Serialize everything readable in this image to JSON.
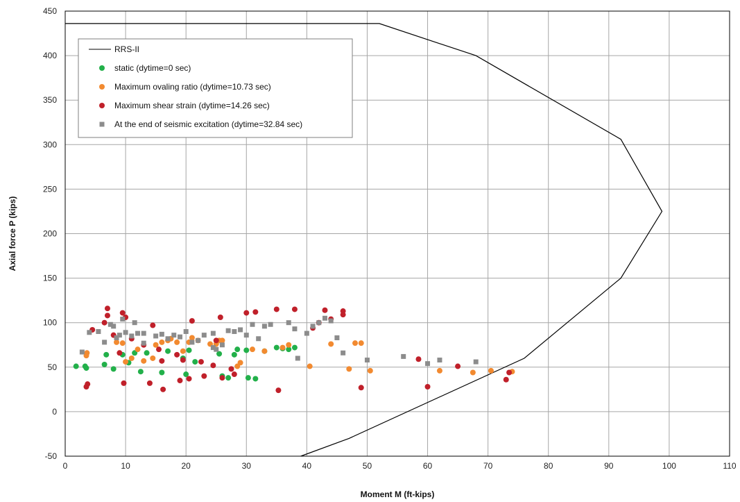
{
  "chart_data": {
    "type": "scatter",
    "xlabel": "Moment M (ft-kips)",
    "ylabel": "Axial force P (kips)",
    "xlim": [
      0,
      110
    ],
    "ylim": [
      -50,
      450
    ],
    "xticks": [
      0,
      10,
      20,
      30,
      40,
      50,
      60,
      70,
      80,
      90,
      100,
      110
    ],
    "yticks": [
      -50,
      0,
      50,
      100,
      150,
      200,
      250,
      300,
      350,
      400,
      450
    ],
    "grid": true,
    "legend_position": "top-left",
    "interaction_curve": {
      "name": "RRS-II",
      "color": "#000000",
      "points": [
        [
          0,
          436
        ],
        [
          52,
          436
        ],
        [
          68,
          400
        ],
        [
          92,
          306
        ],
        [
          98.8,
          225
        ],
        [
          92,
          150
        ],
        [
          76,
          60
        ],
        [
          47,
          -30
        ],
        [
          39,
          -50
        ]
      ]
    },
    "series": [
      {
        "name": "static (dytime=0 sec)",
        "marker": "circle",
        "color": "#22b04a",
        "points": [
          [
            1.8,
            51
          ],
          [
            3.3,
            51
          ],
          [
            3.5,
            49
          ],
          [
            6.5,
            53
          ],
          [
            6.8,
            64
          ],
          [
            8,
            48
          ],
          [
            9.5,
            64
          ],
          [
            10.5,
            55
          ],
          [
            11.5,
            66
          ],
          [
            12.5,
            45
          ],
          [
            13.5,
            66
          ],
          [
            16,
            44
          ],
          [
            17,
            68
          ],
          [
            19.5,
            60
          ],
          [
            20,
            42
          ],
          [
            20.5,
            69
          ],
          [
            21.5,
            56
          ],
          [
            25.5,
            65
          ],
          [
            26,
            40
          ],
          [
            27,
            38
          ],
          [
            28,
            64
          ],
          [
            28.5,
            70
          ],
          [
            30,
            69
          ],
          [
            30.3,
            38
          ],
          [
            31.5,
            37
          ],
          [
            33,
            68
          ],
          [
            35,
            72
          ],
          [
            36,
            71
          ],
          [
            37,
            70
          ],
          [
            38,
            72
          ]
        ]
      },
      {
        "name": "Maximum ovaling ratio (dytime=10.73 sec)",
        "marker": "circle",
        "color": "#f28a30",
        "points": [
          [
            3.5,
            63
          ],
          [
            3.6,
            66
          ],
          [
            8.5,
            78
          ],
          [
            9.5,
            77
          ],
          [
            10,
            56
          ],
          [
            11,
            60
          ],
          [
            12,
            70
          ],
          [
            13,
            57
          ],
          [
            14.5,
            60
          ],
          [
            15,
            75
          ],
          [
            16,
            78
          ],
          [
            17,
            80
          ],
          [
            17.5,
            82
          ],
          [
            18.5,
            78
          ],
          [
            19.5,
            68
          ],
          [
            20.5,
            78
          ],
          [
            21,
            83
          ],
          [
            22,
            80
          ],
          [
            24,
            76
          ],
          [
            25,
            76
          ],
          [
            25.5,
            80
          ],
          [
            26,
            80
          ],
          [
            28.5,
            51
          ],
          [
            29,
            55
          ],
          [
            31,
            70
          ],
          [
            33,
            68
          ],
          [
            36,
            72
          ],
          [
            37,
            75
          ],
          [
            40.5,
            51
          ],
          [
            44,
            76
          ],
          [
            47,
            48
          ],
          [
            48,
            77
          ],
          [
            49,
            77
          ],
          [
            50.5,
            46
          ],
          [
            62,
            46
          ],
          [
            67.5,
            44
          ],
          [
            70.5,
            46
          ],
          [
            74,
            45
          ]
        ]
      },
      {
        "name": "Maximum shear strain (dytime=14.26 sec)",
        "marker": "circle",
        "color": "#c0202a",
        "points": [
          [
            3.5,
            28
          ],
          [
            3.7,
            31
          ],
          [
            4.5,
            92
          ],
          [
            6.5,
            100
          ],
          [
            7,
            116
          ],
          [
            7,
            108
          ],
          [
            8,
            86
          ],
          [
            9,
            66
          ],
          [
            9.5,
            111
          ],
          [
            9.7,
            32
          ],
          [
            10,
            106
          ],
          [
            11,
            82
          ],
          [
            13,
            75
          ],
          [
            14,
            32
          ],
          [
            14.5,
            97
          ],
          [
            15.5,
            70
          ],
          [
            16,
            57
          ],
          [
            16.2,
            25
          ],
          [
            18.5,
            64
          ],
          [
            19,
            35
          ],
          [
            19.5,
            58
          ],
          [
            20.5,
            37
          ],
          [
            21,
            102
          ],
          [
            22.5,
            56
          ],
          [
            23,
            40
          ],
          [
            24.5,
            52
          ],
          [
            25,
            80
          ],
          [
            25.7,
            106
          ],
          [
            26,
            38
          ],
          [
            27.5,
            48
          ],
          [
            28,
            42
          ],
          [
            30,
            111
          ],
          [
            31.5,
            112
          ],
          [
            35,
            115
          ],
          [
            35.3,
            24
          ],
          [
            38,
            115
          ],
          [
            41,
            94
          ],
          [
            42,
            100
          ],
          [
            43,
            114
          ],
          [
            44,
            104
          ],
          [
            46,
            109
          ],
          [
            46,
            113
          ],
          [
            49,
            27
          ],
          [
            58.5,
            59
          ],
          [
            60,
            28
          ],
          [
            65,
            51
          ],
          [
            73,
            36
          ],
          [
            73.5,
            44
          ]
        ]
      },
      {
        "name": "At the end of seismic excitation (dytime=32.84 sec)",
        "marker": "square",
        "color": "#8c8c8c",
        "points": [
          [
            2.8,
            67
          ],
          [
            4,
            89
          ],
          [
            5.5,
            90
          ],
          [
            6.5,
            78
          ],
          [
            7.5,
            98
          ],
          [
            8,
            96
          ],
          [
            8.5,
            83
          ],
          [
            9,
            86
          ],
          [
            9.5,
            104
          ],
          [
            10,
            89
          ],
          [
            11,
            85
          ],
          [
            11.5,
            100
          ],
          [
            12,
            88
          ],
          [
            13,
            88
          ],
          [
            13,
            77
          ],
          [
            15,
            85
          ],
          [
            16,
            87
          ],
          [
            17,
            82
          ],
          [
            18,
            86
          ],
          [
            19,
            84
          ],
          [
            20,
            90
          ],
          [
            21,
            78
          ],
          [
            22,
            80
          ],
          [
            23,
            86
          ],
          [
            24.5,
            88
          ],
          [
            24.5,
            72
          ],
          [
            25,
            70
          ],
          [
            26,
            75
          ],
          [
            27,
            91
          ],
          [
            28,
            90
          ],
          [
            29,
            92
          ],
          [
            30,
            86
          ],
          [
            31,
            98
          ],
          [
            32,
            82
          ],
          [
            33,
            96
          ],
          [
            34,
            98
          ],
          [
            37,
            100
          ],
          [
            38,
            93
          ],
          [
            38.5,
            60
          ],
          [
            40,
            88
          ],
          [
            41,
            96
          ],
          [
            42,
            100
          ],
          [
            43,
            105
          ],
          [
            44,
            102
          ],
          [
            45,
            83
          ],
          [
            46,
            66
          ],
          [
            50,
            58
          ],
          [
            56,
            62
          ],
          [
            60,
            54
          ],
          [
            62,
            58
          ],
          [
            68,
            56
          ]
        ]
      }
    ]
  }
}
